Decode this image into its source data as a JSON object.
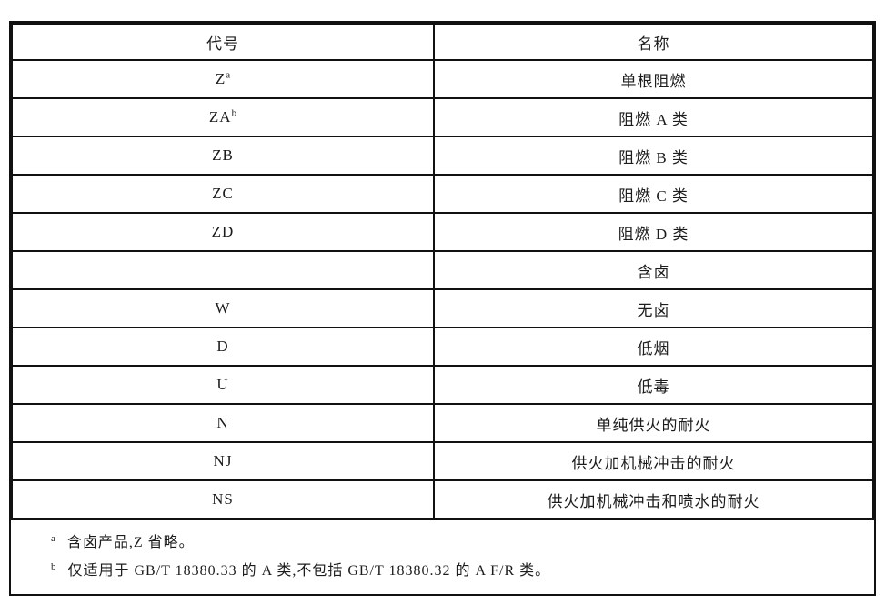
{
  "table": {
    "header": {
      "code": "代号",
      "name": "名称"
    },
    "rows": [
      {
        "code": "Z",
        "sup": "a",
        "name": "单根阻燃"
      },
      {
        "code": "ZA",
        "sup": "b",
        "name": "阻燃 A 类"
      },
      {
        "code": "ZB",
        "sup": "",
        "name": "阻燃 B 类"
      },
      {
        "code": "ZC",
        "sup": "",
        "name": "阻燃 C 类"
      },
      {
        "code": "ZD",
        "sup": "",
        "name": "阻燃 D 类"
      },
      {
        "code": "",
        "sup": "",
        "name": "含卤"
      },
      {
        "code": "W",
        "sup": "",
        "name": "无卤"
      },
      {
        "code": "D",
        "sup": "",
        "name": "低烟"
      },
      {
        "code": "U",
        "sup": "",
        "name": "低毒"
      },
      {
        "code": "N",
        "sup": "",
        "name": "单纯供火的耐火"
      },
      {
        "code": "NJ",
        "sup": "",
        "name": "供火加机械冲击的耐火"
      },
      {
        "code": "NS",
        "sup": "",
        "name": "供火加机械冲击和喷水的耐火"
      }
    ],
    "footnotes": [
      {
        "marker": "a",
        "text": "含卤产品,Z 省略。"
      },
      {
        "marker": "b",
        "text": "仅适用于 GB/T 18380.33 的 A 类,不包括 GB/T 18380.32 的 A F/R 类。"
      }
    ]
  },
  "colors": {
    "border": "#111111",
    "text": "#1c1c1c",
    "background": "#ffffff"
  }
}
